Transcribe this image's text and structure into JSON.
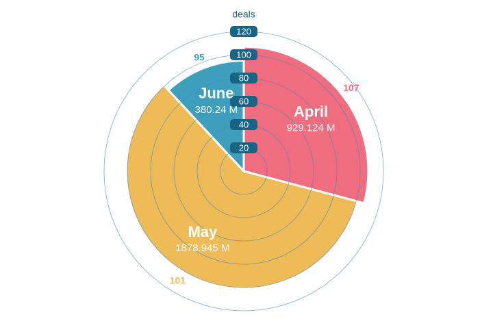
{
  "chart_data": {
    "type": "polar-pie",
    "r_label": "deals",
    "categories": [
      "April",
      "May",
      "June"
    ],
    "values": [
      929.124,
      1878.945,
      380.24
    ],
    "value_labels": [
      "929.124 M",
      "1878.945 M",
      "380.24 M"
    ],
    "r_values": [
      107,
      101,
      95
    ],
    "colors": [
      "#f06c7f",
      "#efbb57",
      "#3d9fbb"
    ],
    "rlim": [
      0,
      120
    ],
    "rticks": [
      20,
      40,
      60,
      80,
      100,
      120
    ],
    "grid": true
  }
}
